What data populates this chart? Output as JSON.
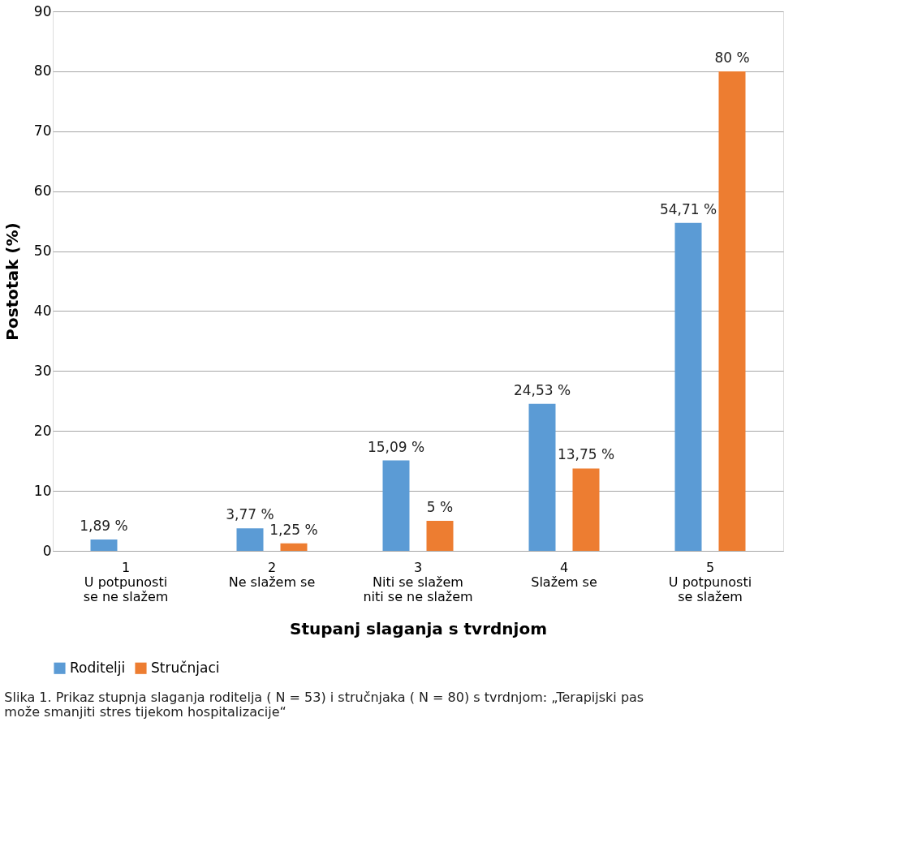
{
  "chart_data": {
    "type": "bar",
    "xlabel": "Stupanj slaganja s tvrdnjom",
    "ylabel": "Postotak (%)",
    "categories": [
      "1\nU potpunosti\nse ne slažem",
      "2\nNe slažem se",
      "3\nNiti se slažem\nniti se ne slažem",
      "4\nSlažem se",
      "5\nU potpunosti\nse slažem"
    ],
    "series": [
      {
        "name": "Roditelji",
        "color": "#5b9bd5",
        "values": [
          1.89,
          3.77,
          15.09,
          24.53,
          54.71
        ],
        "value_labels": [
          "1,89 %",
          "3,77 %",
          "15,09 %",
          "24,53 %",
          "54,71 %"
        ]
      },
      {
        "name": "Stručnjaci",
        "color": "#ed7d31",
        "values": [
          0,
          1.25,
          5,
          13.75,
          80
        ],
        "value_labels": [
          null,
          "1,25 %",
          "5 %",
          "13,75 %",
          "80 %"
        ]
      }
    ],
    "ylim": [
      0,
      90
    ],
    "yticks": [
      0,
      10,
      20,
      30,
      40,
      50,
      60,
      70,
      80,
      90
    ],
    "grid": "y",
    "legend": "bottom left",
    "annotations": [
      "Slika 1. Prikaz stupnja slaganja roditelja ( N = 53) i stručnjaka ( N = 80) s tvrdnjom: „Terapijski pas može smanjiti stres tijekom hospitalizacije“"
    ]
  }
}
